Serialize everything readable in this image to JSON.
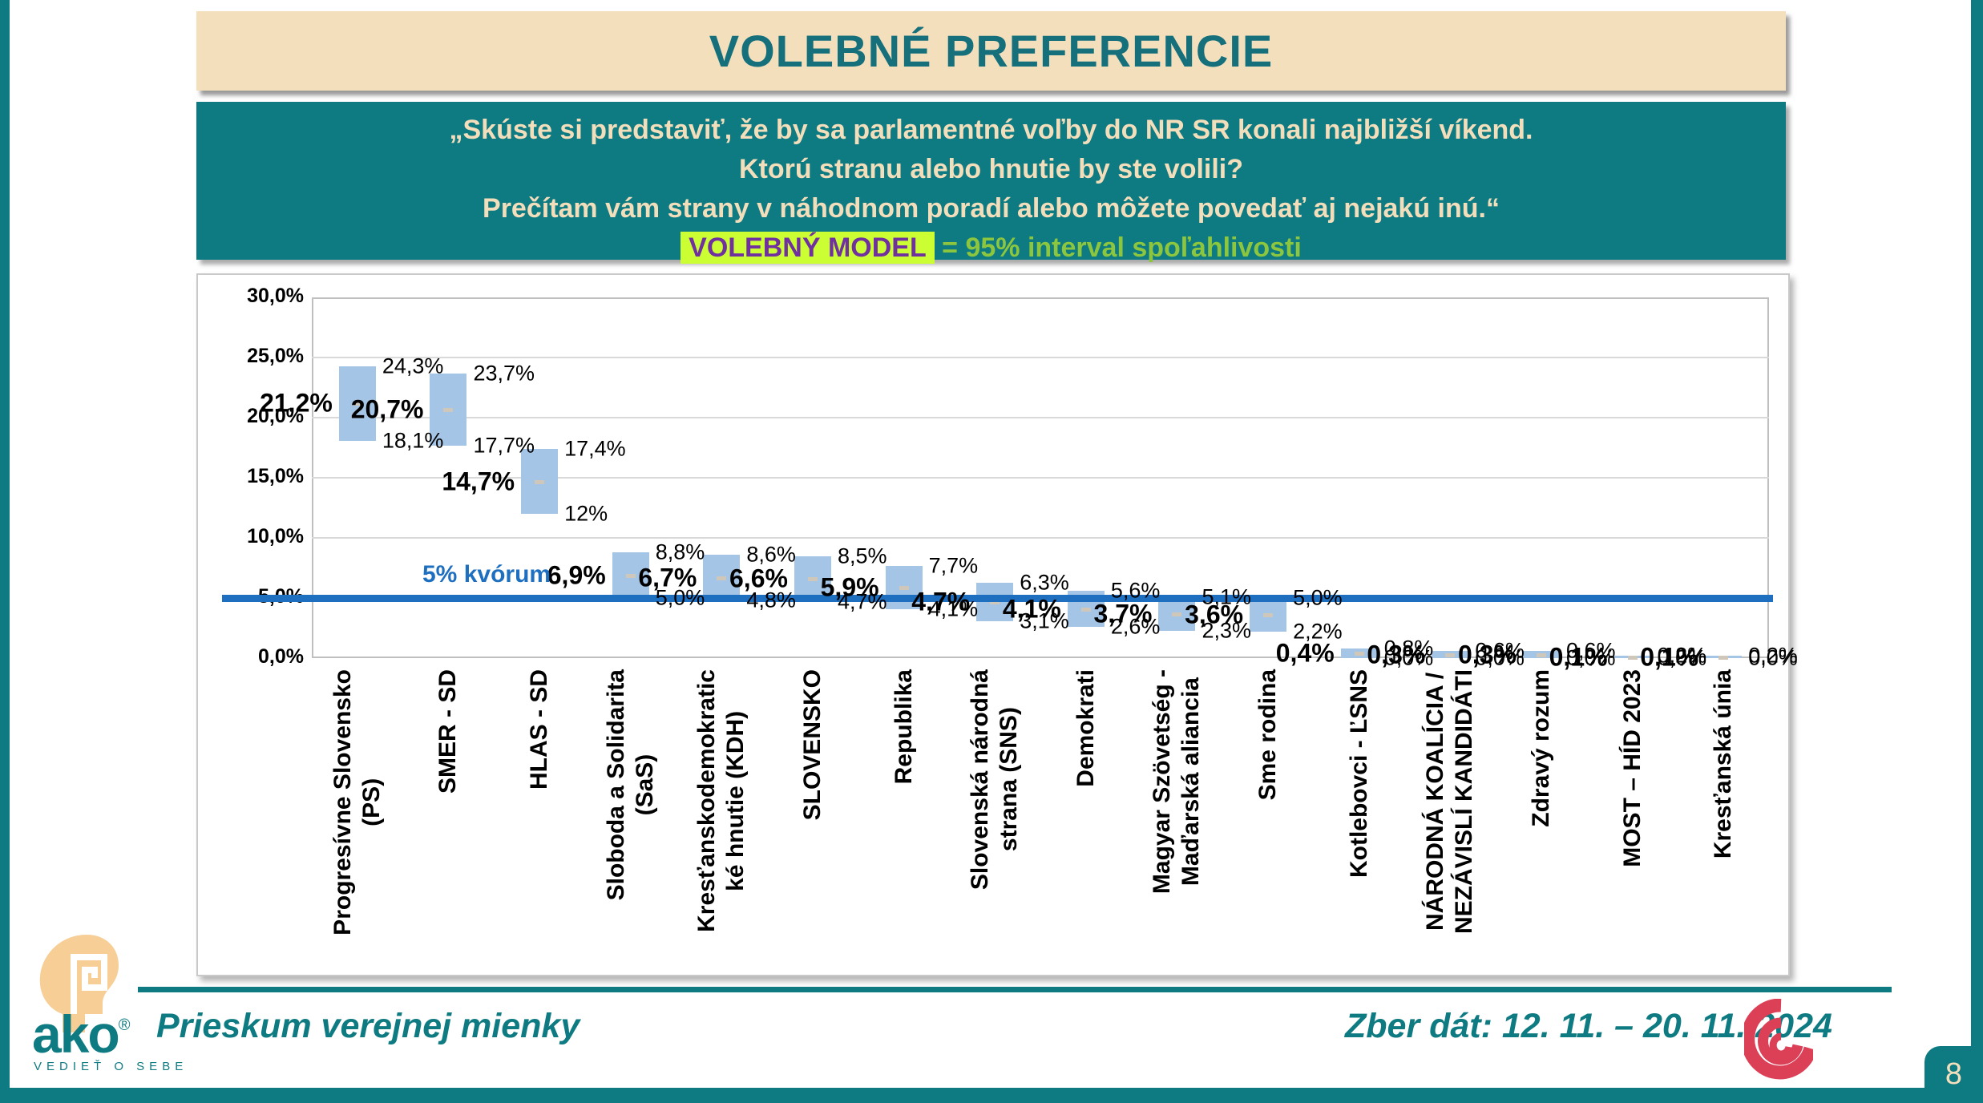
{
  "header": {
    "title": "VOLEBNÉ PREFERENCIE"
  },
  "question_box": {
    "line1": "„Skúste si predstaviť, že by sa parlamentné voľby do NR SR konali najbližší víkend.",
    "line2": "Ktorú stranu alebo hnutie by ste volili?",
    "line3": "Prečítam vám strany v náhodnom poradí alebo môžete povedať aj nejakú inú.“",
    "highlight": "VOLEBNÝ MODEL",
    "suffix": "= 95% interval spoľahlivosti"
  },
  "chart_data": {
    "type": "bar",
    "variant": "floating-range-bars-95ci",
    "title": "",
    "xlabel": "",
    "ylabel": "",
    "ylim": [
      0,
      30
    ],
    "ytick_step": 5,
    "ytick_labels": [
      "0,0%",
      "5,0%",
      "10,0%",
      "15,0%",
      "20,0%",
      "25,0%",
      "30,0%"
    ],
    "grid": "horizontal",
    "bar_color": "#a5c5e6",
    "quorum": {
      "value": 5,
      "label": "5% kvórum",
      "color": "#1e6fc0"
    },
    "parties": [
      {
        "name": "Progresívne Slovensko (PS)",
        "axis_label": "Progresívne Slovensko\n(PS)",
        "mid": 21.2,
        "high": 24.3,
        "low": 18.1,
        "mid_label": "21,2%",
        "high_label": "24,3%",
        "low_label": "18,1%"
      },
      {
        "name": "SMER - SD",
        "axis_label": "SMER - SD",
        "mid": 20.7,
        "high": 23.7,
        "low": 17.7,
        "mid_label": "20,7%",
        "high_label": "23,7%",
        "low_label": "17,7%"
      },
      {
        "name": "HLAS - SD",
        "axis_label": "HLAS - SD",
        "mid": 14.7,
        "high": 17.4,
        "low": 12.0,
        "mid_label": "14,7%",
        "high_label": "17,4%",
        "low_label": "12%"
      },
      {
        "name": "Sloboda a Solidarita (SaS)",
        "axis_label": "Sloboda a Solidarita\n(SaS)",
        "mid": 6.9,
        "high": 8.8,
        "low": 5.0,
        "mid_label": "6,9%",
        "high_label": "8,8%",
        "low_label": "5,0%"
      },
      {
        "name": "Kresťanskodemokratické hnutie (KDH)",
        "axis_label": "Kresťanskodemokratic\nké hnutie (KDH)",
        "mid": 6.7,
        "high": 8.6,
        "low": 4.8,
        "mid_label": "6,7%",
        "high_label": "8,6%",
        "low_label": "4,8%"
      },
      {
        "name": "SLOVENSKO",
        "axis_label": "SLOVENSKO",
        "mid": 6.6,
        "high": 8.5,
        "low": 4.7,
        "mid_label": "6,6%",
        "high_label": "8,5%",
        "low_label": "4,7%"
      },
      {
        "name": "Republika",
        "axis_label": "Republika",
        "mid": 5.9,
        "high": 7.7,
        "low": 4.1,
        "mid_label": "5,9%",
        "high_label": "7,7%",
        "low_label": "4,1%"
      },
      {
        "name": "Slovenská národná strana (SNS)",
        "axis_label": "Slovenská národná\nstrana (SNS)",
        "mid": 4.7,
        "high": 6.3,
        "low": 3.1,
        "mid_label": "4,7%",
        "high_label": "6,3%",
        "low_label": "3,1%"
      },
      {
        "name": "Demokrati",
        "axis_label": "Demokrati",
        "mid": 4.1,
        "high": 5.6,
        "low": 2.6,
        "mid_label": "4,1%",
        "high_label": "5,6%",
        "low_label": "2,6%"
      },
      {
        "name": "Magyar Szövetség - Maďarská aliancia",
        "axis_label": "Magyar Szövetség -\nMaďarská aliancia",
        "mid": 3.7,
        "high": 5.1,
        "low": 2.3,
        "mid_label": "3,7%",
        "high_label": "5,1%",
        "low_label": "2,3%"
      },
      {
        "name": "Sme rodina",
        "axis_label": "Sme rodina",
        "mid": 3.6,
        "high": 5.0,
        "low": 2.2,
        "mid_label": "3,6%",
        "high_label": "5,0%",
        "low_label": "2,2%"
      },
      {
        "name": "Kotlebovci - ĽSNS",
        "axis_label": "Kotlebovci - ĽSNS",
        "mid": 0.4,
        "high": 0.8,
        "low": 0.0,
        "mid_label": "0,4%",
        "high_label": "0,8%",
        "low_label": "0,0%"
      },
      {
        "name": "NÁRODNÁ KOALÍCIA / NEZÁVISLÍ KANDIDÁTI",
        "axis_label": "NÁRODNÁ KOALÍCIA /\nNEZÁVISLÍ KANDIDÁTI",
        "mid": 0.3,
        "high": 0.6,
        "low": 0.0,
        "mid_label": "0,3%",
        "high_label": "0,6%",
        "low_label": "0,0%"
      },
      {
        "name": "Zdravý rozum",
        "axis_label": "Zdravý rozum",
        "mid": 0.3,
        "high": 0.6,
        "low": 0.0,
        "mid_label": "0,3%",
        "high_label": "0,6%",
        "low_label": "0,0%"
      },
      {
        "name": "MOST – HÍD 2023",
        "axis_label": "MOST – HÍD 2023",
        "mid": 0.1,
        "high": 0.2,
        "low": 0.0,
        "mid_label": "0,1%",
        "high_label": "0,2%",
        "low_label": "0,0%"
      },
      {
        "name": "Kresťanská únia",
        "axis_label": "Kresťanská únia",
        "mid": 0.1,
        "high": 0.2,
        "low": 0.0,
        "mid_label": "0,1%",
        "high_label": "0,2%",
        "low_label": "0,0%"
      }
    ]
  },
  "footer": {
    "logo_word": "ako",
    "logo_reg": "®",
    "logo_tagline": "VEDIEŤ O SEBE",
    "survey_label": "Prieskum verejnej mienky",
    "date_label": "Zber dát: 12. 11. – 20. 11. 2024"
  },
  "page": {
    "number": "8"
  }
}
